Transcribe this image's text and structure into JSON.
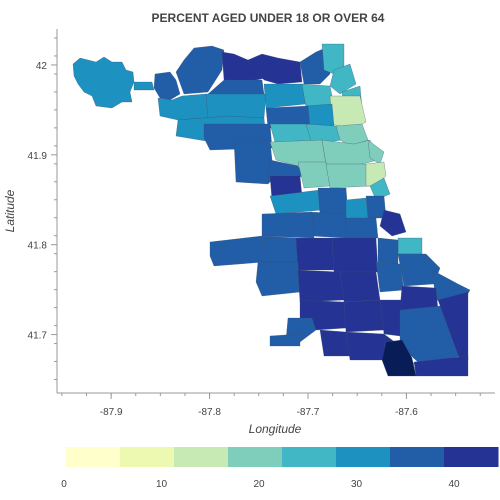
{
  "title": "PERCENT AGED UNDER 18 OR OVER 64",
  "x_axis": {
    "label": "Longitude",
    "ticks": [
      {
        "value": -87.9,
        "label": "-87.9"
      },
      {
        "value": -87.8,
        "label": "-87.8"
      },
      {
        "value": -87.7,
        "label": "-87.7"
      },
      {
        "value": -87.6,
        "label": "-87.6"
      }
    ]
  },
  "y_axis": {
    "label": "Latitude",
    "ticks": [
      {
        "value": 42.0,
        "label": "42"
      },
      {
        "value": 41.9,
        "label": "41.9"
      },
      {
        "value": 41.8,
        "label": "41.8"
      },
      {
        "value": 41.7,
        "label": "41.7"
      }
    ]
  },
  "colorbar": {
    "min": 0,
    "max": 44,
    "tick_labels": [
      "0",
      "10",
      "20",
      "30",
      "40"
    ],
    "tick_values": [
      0,
      10,
      20,
      30,
      40
    ],
    "colors": [
      "#ffffcc",
      "#edf8b1",
      "#c7e9b4",
      "#7fcdbb",
      "#41b6c4",
      "#1d91c0",
      "#225ea8",
      "#253494",
      "#081d58"
    ]
  },
  "chart_data": {
    "type": "choropleth",
    "title": "PERCENT AGED UNDER 18 OR OVER 64",
    "xlabel": "Longitude",
    "ylabel": "Latitude",
    "xlim": [
      -87.955,
      -87.51
    ],
    "ylim": [
      41.635,
      42.04
    ],
    "color_scale": "YlGnBu",
    "color_range": [
      0,
      44
    ],
    "grid": false,
    "legend": "colorbar-bottom"
  }
}
